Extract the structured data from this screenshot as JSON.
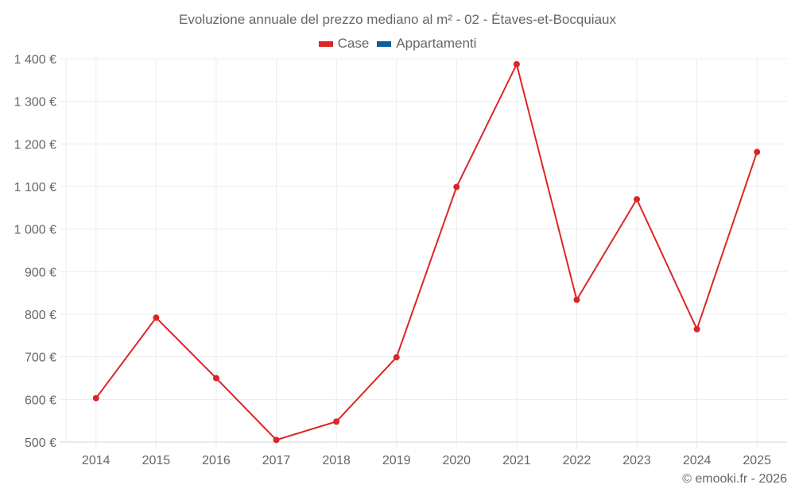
{
  "title": "Evoluzione annuale del prezzo mediano al m² - 02 - Étaves-et-Bocquiaux",
  "legend": [
    {
      "label": "Case",
      "color": "#dc2626"
    },
    {
      "label": "Appartamenti",
      "color": "#0b5e9e"
    }
  ],
  "credit": "© emooki.fr - 2026",
  "chart_data": {
    "type": "line",
    "title": "Evoluzione annuale del prezzo mediano al m² - 02 - Étaves-et-Bocquiaux",
    "xlabel": "",
    "ylabel": "",
    "categories": [
      "2014",
      "2015",
      "2016",
      "2017",
      "2018",
      "2019",
      "2020",
      "2021",
      "2022",
      "2023",
      "2024",
      "2025"
    ],
    "series": [
      {
        "name": "Case",
        "color": "#dc2626",
        "values": [
          603,
          792,
          650,
          505,
          548,
          699,
          1099,
          1387,
          834,
          1070,
          765,
          1181
        ]
      },
      {
        "name": "Appartamenti",
        "color": "#0b5e9e",
        "values": []
      }
    ],
    "ylim": [
      500,
      1400
    ],
    "yticks": [
      500,
      600,
      700,
      800,
      900,
      1000,
      1100,
      1200,
      1300,
      1400
    ],
    "ytick_labels": [
      "500 €",
      "600 €",
      "700 €",
      "800 €",
      "900 €",
      "1 000 €",
      "1 100 €",
      "1 200 €",
      "1 300 €",
      "1 400 €"
    ],
    "grid": true,
    "legend_position": "top"
  }
}
